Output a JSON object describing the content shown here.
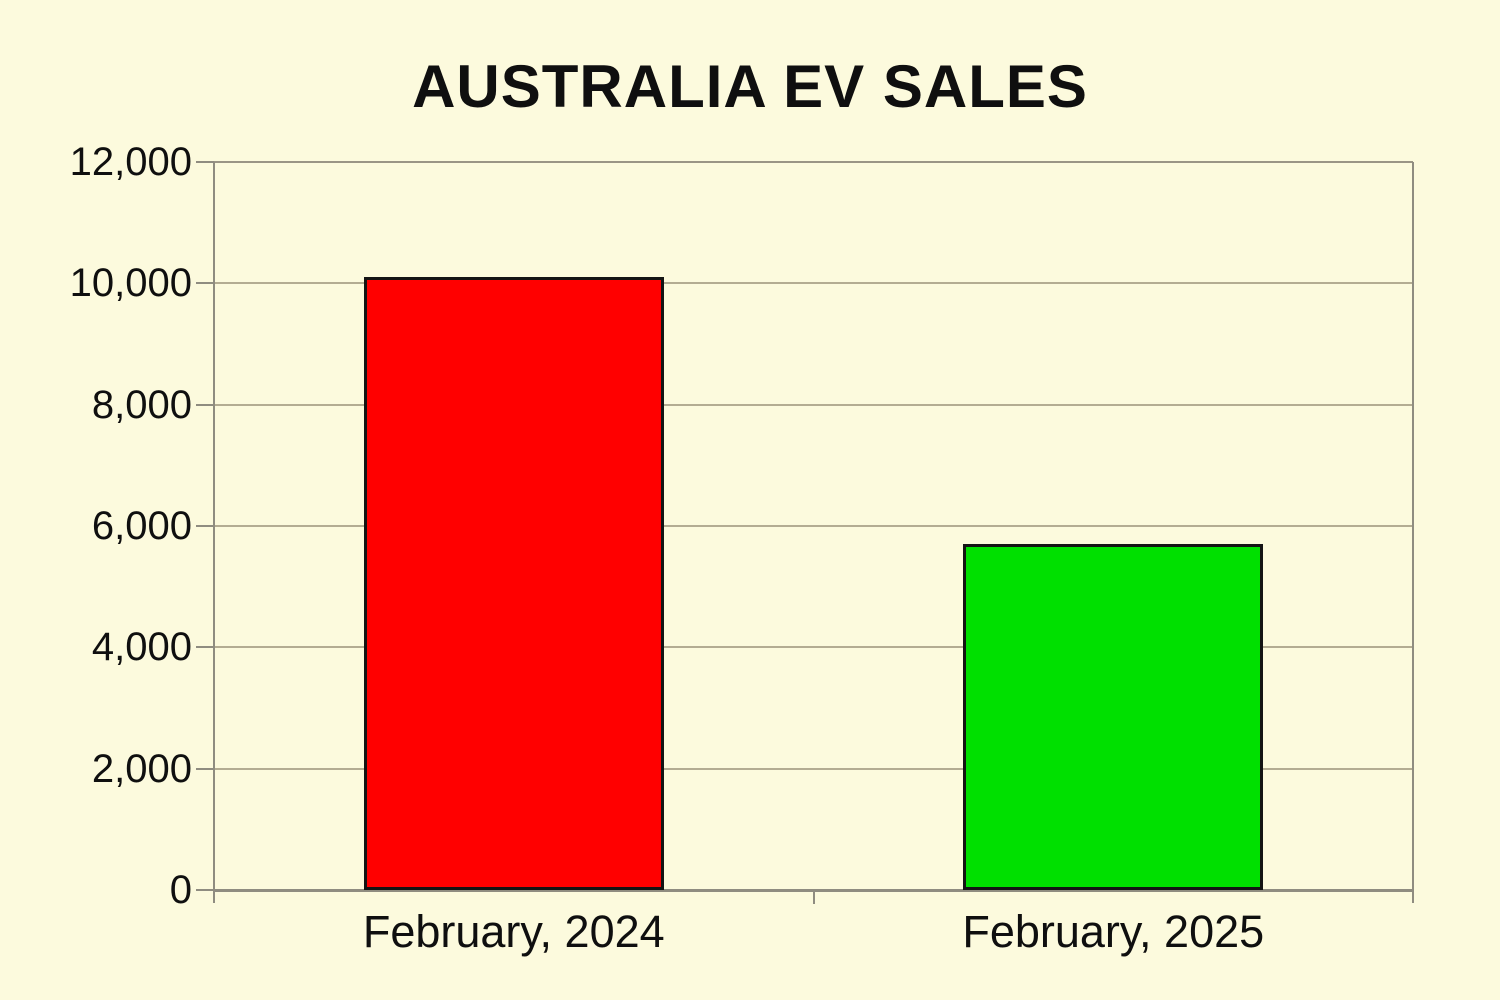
{
  "page": {
    "background": "#fcfadd"
  },
  "chart_data": {
    "type": "bar",
    "title": "AUSTRALIA EV SALES",
    "categories": [
      "February, 2024",
      "February, 2025"
    ],
    "values": [
      10100,
      5700
    ],
    "bar_colors": [
      "#ff0000",
      "#00e000"
    ],
    "xlabel": "",
    "ylabel": "",
    "ylim": [
      0,
      12000
    ],
    "ytick_interval": 2000,
    "ytick_labels": [
      "0",
      "2,000",
      "4,000",
      "6,000",
      "8,000",
      "10,000",
      "12,000"
    ],
    "grid": true,
    "legend": false,
    "colors": {
      "grid": "#b3ac92",
      "axis": "#8f8c80",
      "bar_border": "#141414",
      "text": "#0f0f0f"
    }
  }
}
